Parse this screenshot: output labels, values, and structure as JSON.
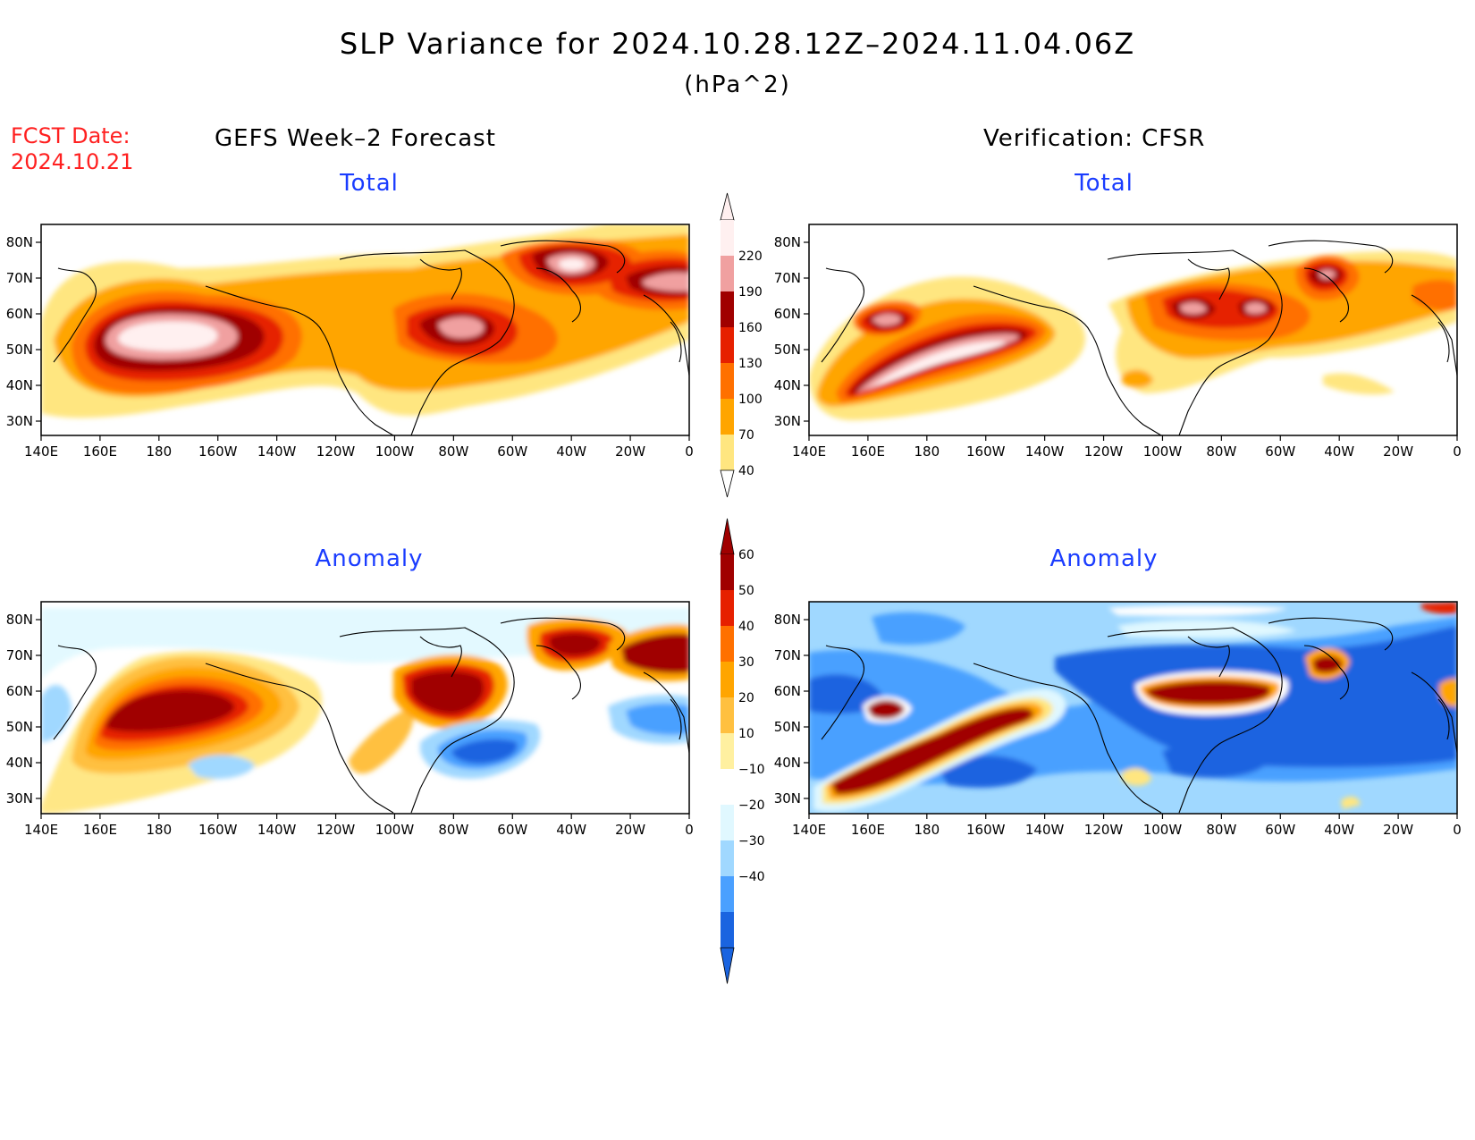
{
  "title": "SLP Variance for 2024.10.28.12Z–2024.11.04.06Z",
  "units": "(hPa^2)",
  "fcst_label": "FCST Date:",
  "fcst_date": "2024.10.21",
  "left_heading": "GEFS Week–2 Forecast",
  "right_heading": "Verification: CFSR",
  "panels": {
    "top_left_title": "Total",
    "top_right_title": "Total",
    "bottom_left_title": "Anomaly",
    "bottom_right_title": "Anomaly"
  },
  "lat_labels": [
    "80N",
    "70N",
    "60N",
    "50N",
    "40N",
    "30N"
  ],
  "lon_labels": [
    "140E",
    "160E",
    "180",
    "160W",
    "140W",
    "120W",
    "100W",
    "80W",
    "60W",
    "40W",
    "20W",
    "0"
  ],
  "total_colorbar": {
    "levels": [
      "40",
      "70",
      "100",
      "130",
      "160",
      "190",
      "220"
    ],
    "colors": [
      "#ffe680",
      "#ffa500",
      "#ff7000",
      "#e62000",
      "#a00000",
      "#f0a0a0",
      "#fff0f0"
    ]
  },
  "anomaly_colorbar": {
    "levels": [
      "60",
      "50",
      "40",
      "30",
      "20",
      "10",
      "−10",
      "−20",
      "−30",
      "−40"
    ],
    "colors_pos": [
      "#a00000",
      "#e62000",
      "#ff7000",
      "#ffa500",
      "#ffc040",
      "#fff0a0"
    ],
    "colors_neg": [
      "#e0f8ff",
      "#a0d8ff",
      "#4aa0ff",
      "#1a64e0"
    ]
  }
}
